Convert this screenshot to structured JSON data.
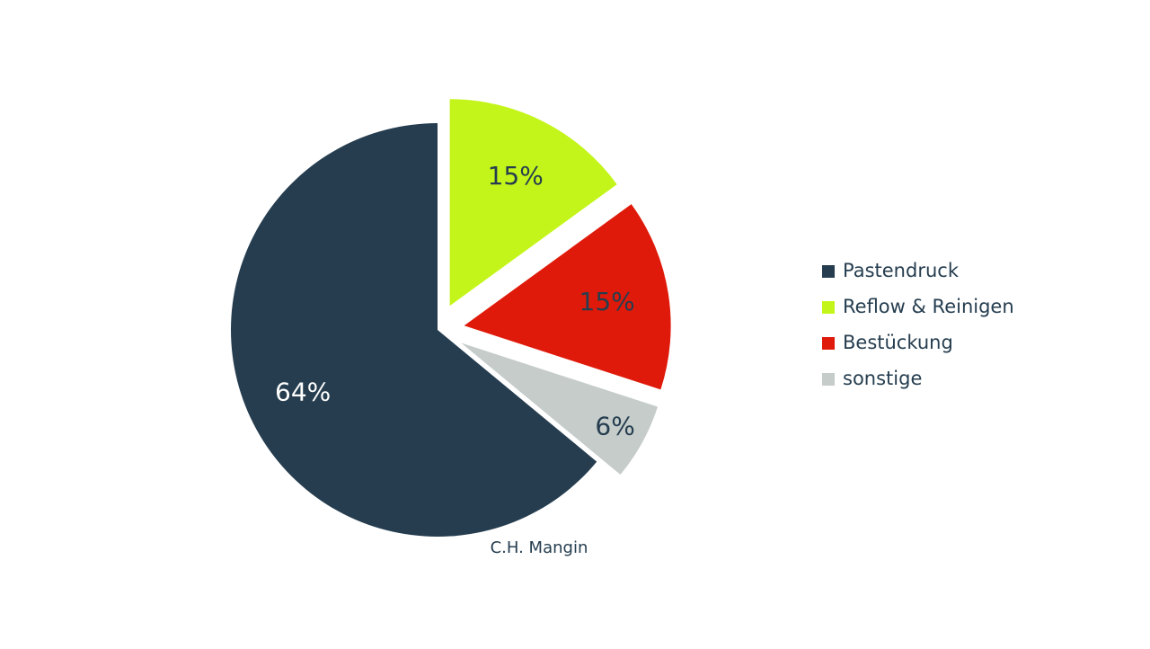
{
  "chart_data": {
    "type": "pie",
    "categories": [
      "Pastendruck",
      "Reflow & Reinigen",
      "Bestückung",
      "sonstige"
    ],
    "values": [
      64,
      15,
      15,
      6
    ],
    "value_labels": [
      "64%",
      "15%",
      "15%",
      "6%"
    ],
    "colors": [
      "#253d4f",
      "#c4f51a",
      "#e01a0a",
      "#c5ccca"
    ],
    "credit": "C.H. Mangin",
    "legend": "right"
  }
}
